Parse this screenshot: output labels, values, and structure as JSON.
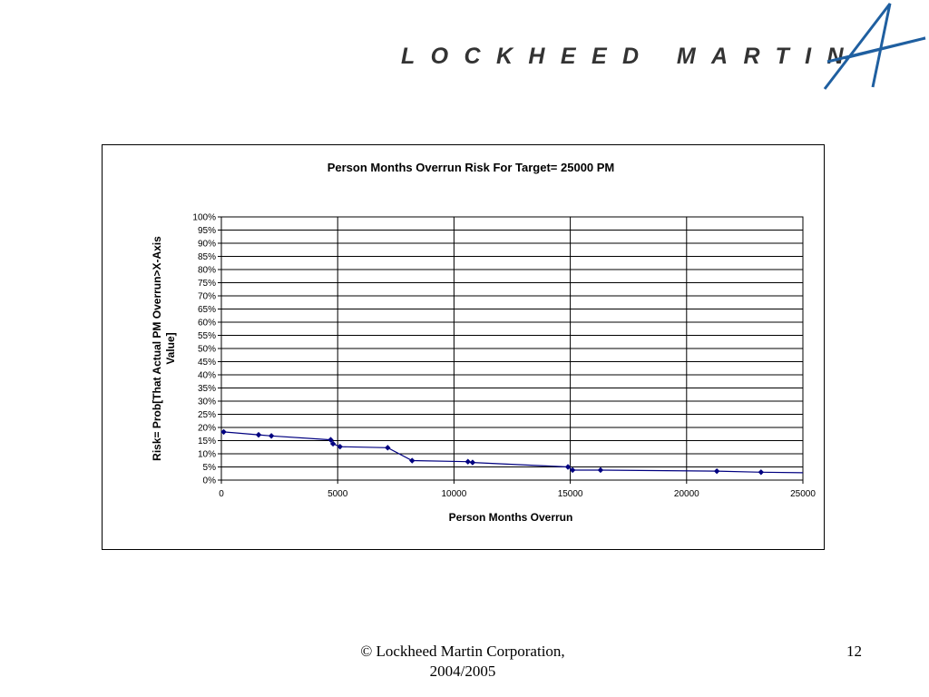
{
  "logo": {
    "text": "LOCKHEED MARTIN",
    "star_color": "#1f5fa0",
    "text_color": "#333333"
  },
  "chart_data": {
    "type": "line",
    "title": "Person Months Overrun Risk For Target= 25000 PM",
    "xlabel": "Person Months Overrun",
    "ylabel": "Risk= Prob[That Actual PM Overrun>X-Axis Value]",
    "xlim": [
      0,
      25000
    ],
    "ylim": [
      0,
      100
    ],
    "x_ticks": [
      "0",
      "5000",
      "10000",
      "15000",
      "20000",
      "25000"
    ],
    "y_ticks": [
      "0%",
      "5%",
      "10%",
      "15%",
      "20%",
      "25%",
      "30%",
      "35%",
      "40%",
      "45%",
      "50%",
      "55%",
      "60%",
      "65%",
      "70%",
      "75%",
      "80%",
      "85%",
      "90%",
      "95%",
      "100%"
    ],
    "grid": true,
    "legend": "none",
    "series_color": "#000080",
    "points": [
      {
        "x": 0,
        "y": 18.5,
        "marker": false
      },
      {
        "x": 100,
        "y": 18.3,
        "marker": true
      },
      {
        "x": 1600,
        "y": 17.2,
        "marker": true
      },
      {
        "x": 2150,
        "y": 16.8,
        "marker": true
      },
      {
        "x": 4700,
        "y": 15.3,
        "marker": true
      },
      {
        "x": 4800,
        "y": 13.8,
        "marker": true
      },
      {
        "x": 5100,
        "y": 12.7,
        "marker": true
      },
      {
        "x": 7150,
        "y": 12.3,
        "marker": true
      },
      {
        "x": 8200,
        "y": 7.4,
        "marker": true
      },
      {
        "x": 10600,
        "y": 7.0,
        "marker": true
      },
      {
        "x": 10800,
        "y": 6.7,
        "marker": true
      },
      {
        "x": 14900,
        "y": 5.0,
        "marker": true
      },
      {
        "x": 15100,
        "y": 3.8,
        "marker": true
      },
      {
        "x": 16300,
        "y": 3.8,
        "marker": true
      },
      {
        "x": 21300,
        "y": 3.4,
        "marker": true
      },
      {
        "x": 23200,
        "y": 3.0,
        "marker": true
      },
      {
        "x": 25000,
        "y": 2.8,
        "marker": false
      }
    ]
  },
  "footer": {
    "copyright_line1": "© Lockheed Martin Corporation,",
    "copyright_line2": "2004/2005",
    "page_number": "12"
  }
}
